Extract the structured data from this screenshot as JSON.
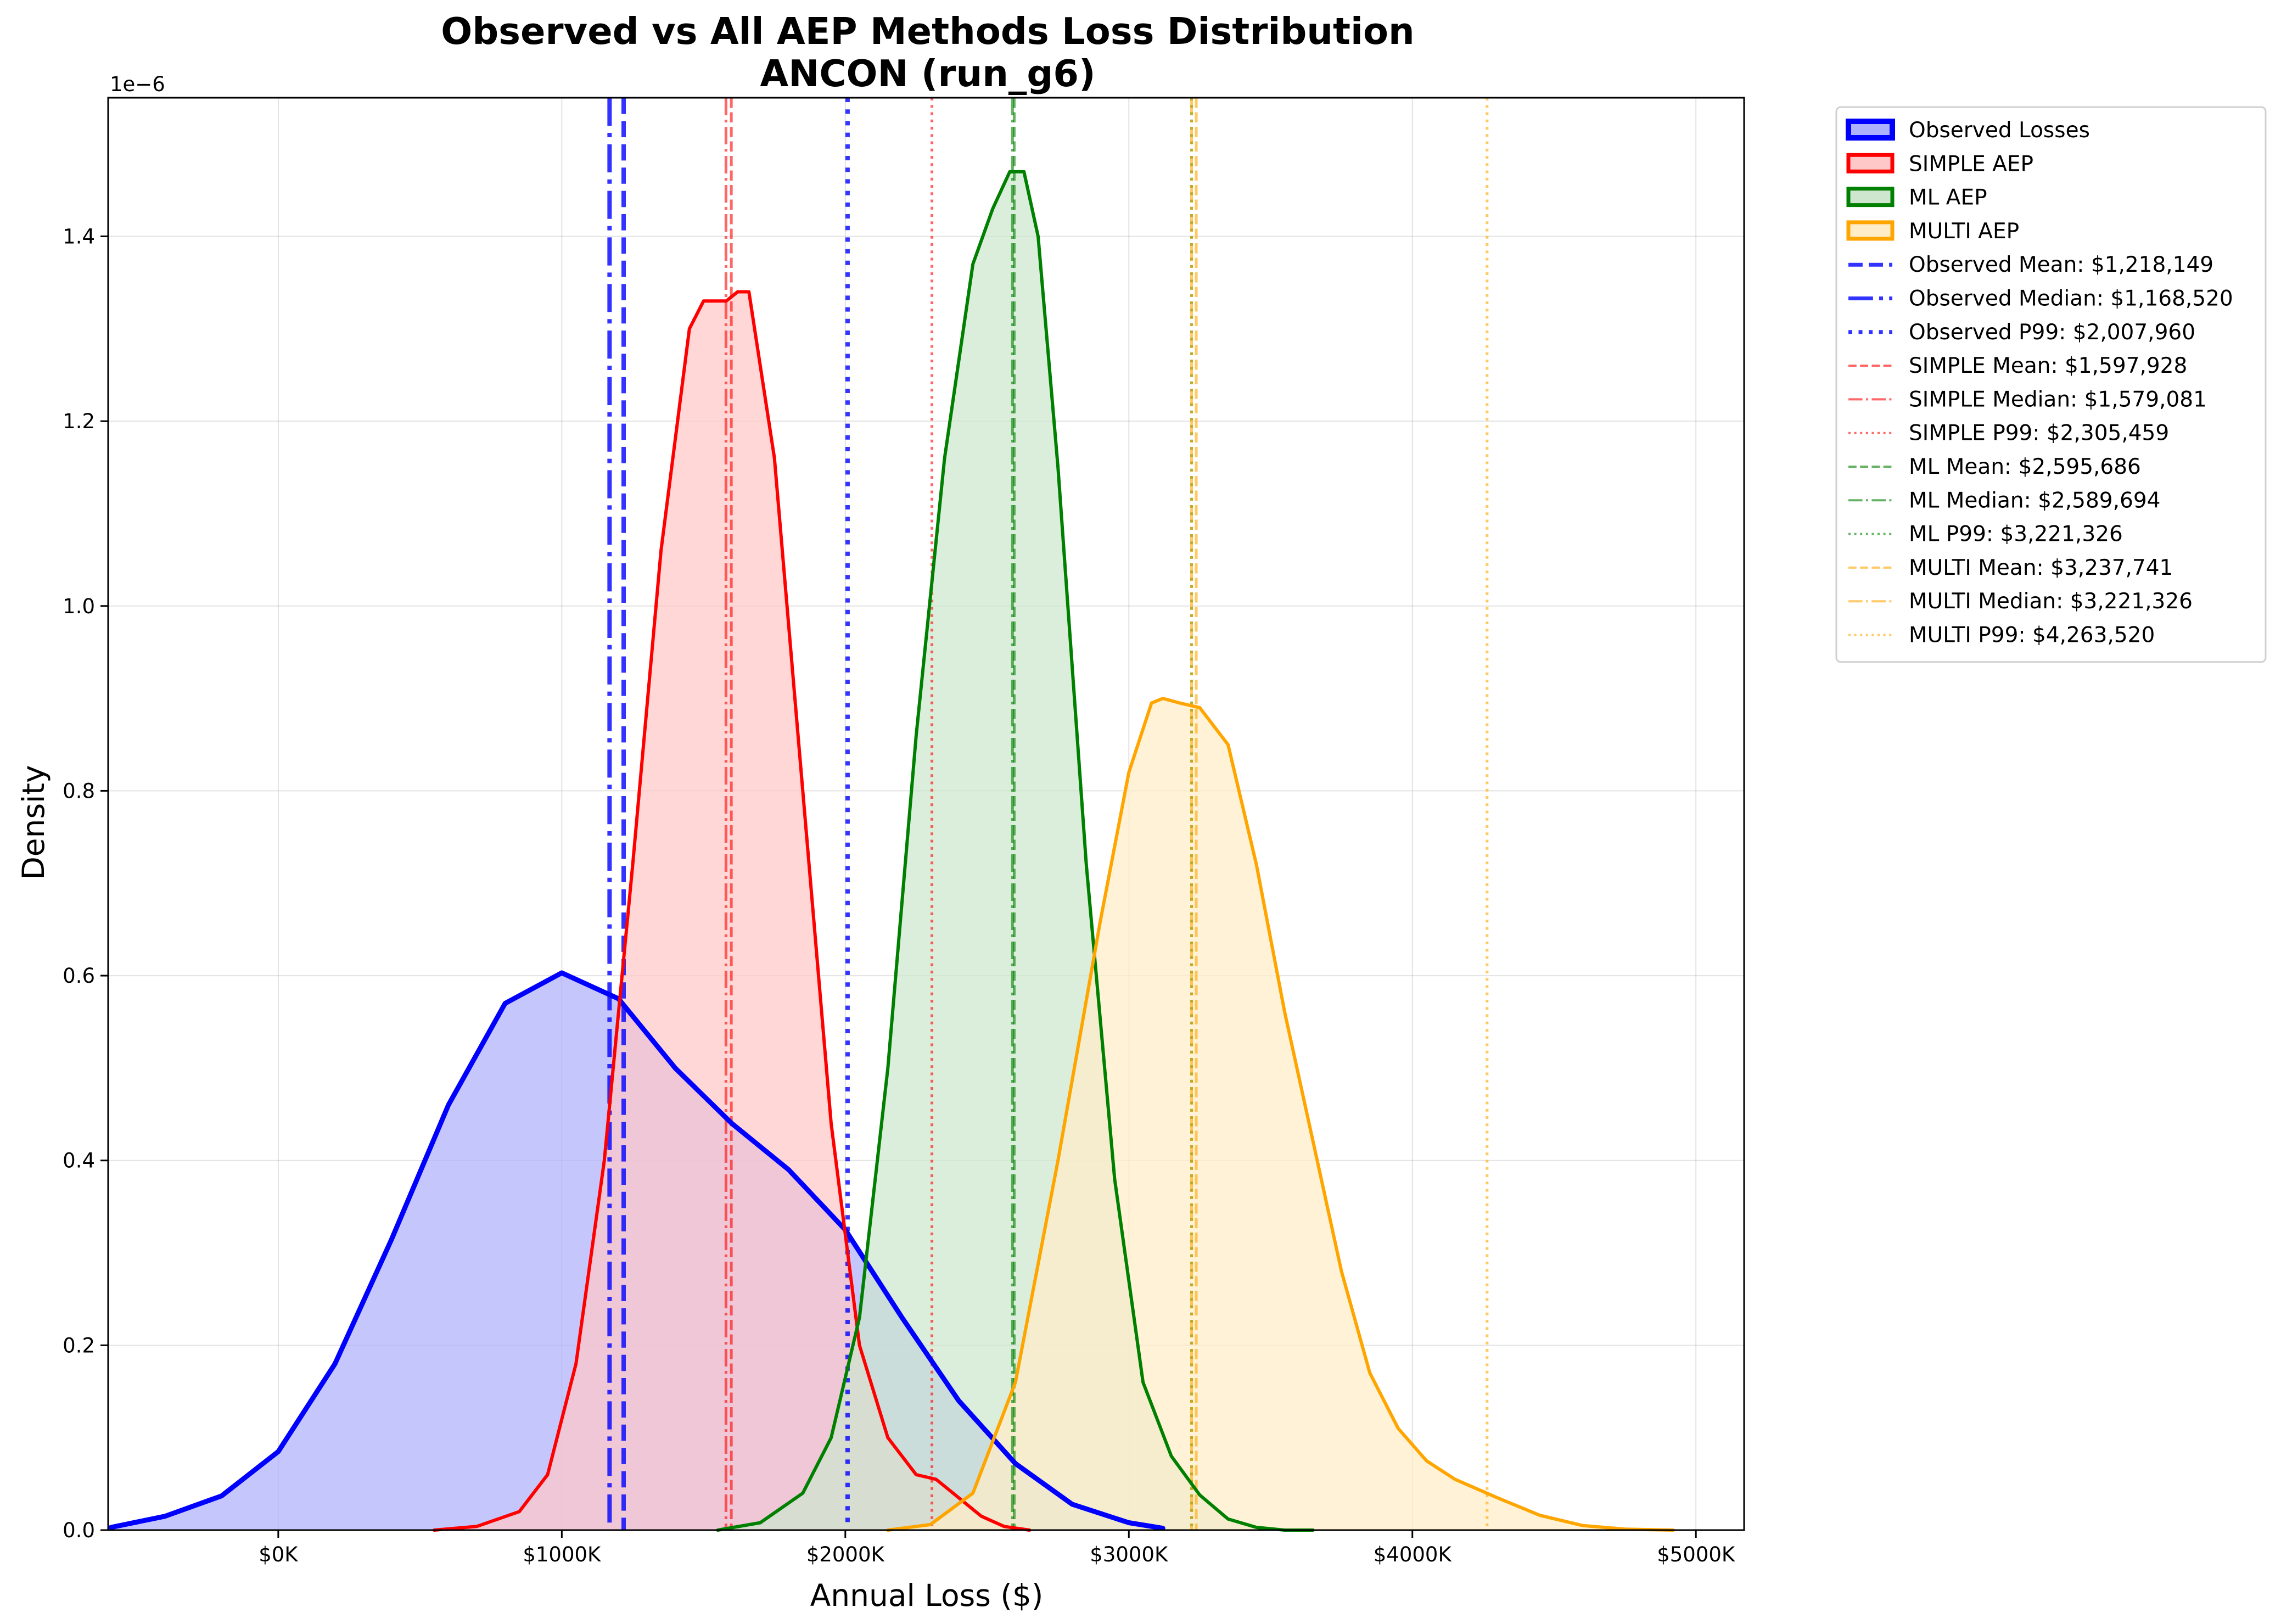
{
  "chart_data": {
    "type": "area",
    "title": "Observed vs All AEP Methods Loss Distribution",
    "subtitle": "ANCON (run_g6)",
    "xlabel": "Annual Loss ($)",
    "ylabel": "Density",
    "y_offset_label": "1e−6",
    "xlim": [
      -600000,
      5170000
    ],
    "ylim": [
      0,
      1.55
    ],
    "x_ticks": [
      {
        "value": 0,
        "label": "$0K"
      },
      {
        "value": 1000000,
        "label": "$1000K"
      },
      {
        "value": 2000000,
        "label": "$2000K"
      },
      {
        "value": 3000000,
        "label": "$3000K"
      },
      {
        "value": 4000000,
        "label": "$4000K"
      },
      {
        "value": 5000000,
        "label": "$5000K"
      }
    ],
    "y_ticks": [
      {
        "value": 0.0,
        "label": "0.0"
      },
      {
        "value": 0.2,
        "label": "0.2"
      },
      {
        "value": 0.4,
        "label": "0.4"
      },
      {
        "value": 0.6,
        "label": "0.6"
      },
      {
        "value": 0.8,
        "label": "0.8"
      },
      {
        "value": 1.0,
        "label": "1.0"
      },
      {
        "value": 1.2,
        "label": "1.2"
      },
      {
        "value": 1.4,
        "label": "1.4"
      }
    ],
    "grid": true,
    "legend_position": "outside-upper-right",
    "series": [
      {
        "name": "Observed Losses",
        "color": "#0000ff",
        "fill_color": "#aeb1fb",
        "line_width": 9,
        "x": [
          -590000,
          -400000,
          -200000,
          0,
          200000,
          400000,
          600000,
          800000,
          1000000,
          1200000,
          1400000,
          1600000,
          1800000,
          2000000,
          2200000,
          2400000,
          2600000,
          2800000,
          3000000,
          3120000
        ],
        "y": [
          0.003,
          0.015,
          0.037,
          0.085,
          0.18,
          0.315,
          0.46,
          0.57,
          0.603,
          0.575,
          0.5,
          0.44,
          0.39,
          0.325,
          0.23,
          0.14,
          0.072,
          0.028,
          0.008,
          0.002
        ]
      },
      {
        "name": "SIMPLE AEP",
        "color": "#ff0000",
        "fill_color": "#ffc8c8",
        "line_width": 6,
        "x": [
          550000,
          700000,
          850000,
          950000,
          1050000,
          1150000,
          1250000,
          1350000,
          1450000,
          1500000,
          1580000,
          1620000,
          1660000,
          1750000,
          1850000,
          1950000,
          2050000,
          2150000,
          2250000,
          2320000,
          2400000,
          2480000,
          2560000,
          2650000
        ],
        "y": [
          0.0,
          0.004,
          0.02,
          0.06,
          0.18,
          0.4,
          0.72,
          1.06,
          1.3,
          1.33,
          1.33,
          1.34,
          1.34,
          1.16,
          0.8,
          0.44,
          0.2,
          0.1,
          0.06,
          0.055,
          0.035,
          0.015,
          0.004,
          0.0
        ]
      },
      {
        "name": "ML AEP",
        "color": "#008000",
        "fill_color": "#cde6cd",
        "line_width": 6,
        "x": [
          1550000,
          1700000,
          1850000,
          1950000,
          2050000,
          2150000,
          2250000,
          2350000,
          2450000,
          2520000,
          2580000,
          2630000,
          2680000,
          2750000,
          2850000,
          2950000,
          3050000,
          3150000,
          3250000,
          3350000,
          3450000,
          3550000,
          3650000
        ],
        "y": [
          0.0,
          0.008,
          0.04,
          0.1,
          0.23,
          0.5,
          0.86,
          1.16,
          1.37,
          1.43,
          1.47,
          1.47,
          1.4,
          1.15,
          0.72,
          0.38,
          0.16,
          0.08,
          0.038,
          0.012,
          0.003,
          0.0,
          0.0
        ]
      },
      {
        "name": "MULTI AEP",
        "color": "#ffa500",
        "fill_color": "#ffedc8",
        "line_width": 6,
        "x": [
          2150000,
          2300000,
          2450000,
          2600000,
          2750000,
          2900000,
          3000000,
          3080000,
          3120000,
          3180000,
          3250000,
          3350000,
          3450000,
          3550000,
          3650000,
          3750000,
          3850000,
          3950000,
          4050000,
          4150000,
          4300000,
          4450000,
          4600000,
          4750000,
          4920000
        ],
        "y": [
          0.0,
          0.006,
          0.04,
          0.16,
          0.4,
          0.66,
          0.82,
          0.895,
          0.9,
          0.895,
          0.89,
          0.85,
          0.72,
          0.56,
          0.42,
          0.28,
          0.17,
          0.11,
          0.075,
          0.055,
          0.035,
          0.016,
          0.005,
          0.001,
          0.0
        ]
      }
    ],
    "reference_lines": [
      {
        "label": "Observed Mean: $1,218,149",
        "value": 1218149,
        "color": "#0000ff",
        "style": "dashed",
        "alpha": 0.8,
        "width": 8
      },
      {
        "label": "Observed Median: $1,168,520",
        "value": 1168520,
        "color": "#0000ff",
        "style": "dashdot",
        "alpha": 0.8,
        "width": 8
      },
      {
        "label": "Observed P99: $2,007,960",
        "value": 2007960,
        "color": "#0000ff",
        "style": "dotted",
        "alpha": 0.8,
        "width": 8
      },
      {
        "label": "SIMPLE Mean: $1,597,928",
        "value": 1597928,
        "color": "#ff0000",
        "style": "dashed",
        "alpha": 0.6,
        "width": 5
      },
      {
        "label": "SIMPLE Median: $1,579,081",
        "value": 1579081,
        "color": "#ff0000",
        "style": "dashdot",
        "alpha": 0.6,
        "width": 5
      },
      {
        "label": "SIMPLE P99: $2,305,459",
        "value": 2305459,
        "color": "#ff0000",
        "style": "dotted",
        "alpha": 0.6,
        "width": 5
      },
      {
        "label": "ML Mean: $2,595,686",
        "value": 2595686,
        "color": "#008000",
        "style": "dashed",
        "alpha": 0.6,
        "width": 5
      },
      {
        "label": "ML Median: $2,589,694",
        "value": 2589694,
        "color": "#008000",
        "style": "dashdot",
        "alpha": 0.6,
        "width": 5
      },
      {
        "label": "ML P99: $3,221,326",
        "value": 3221326,
        "color": "#008000",
        "style": "dotted",
        "alpha": 0.6,
        "width": 5
      },
      {
        "label": "MULTI Mean: $3,237,741",
        "value": 3237741,
        "color": "#ffa500",
        "style": "dashed",
        "alpha": 0.6,
        "width": 5
      },
      {
        "label": "MULTI Median: $3,221,326",
        "value": 3221326,
        "color": "#ffa500",
        "style": "dashdot",
        "alpha": 0.6,
        "width": 5
      },
      {
        "label": "MULTI P99: $4,263,520",
        "value": 4263520,
        "color": "#ffa500",
        "style": "dotted",
        "alpha": 0.6,
        "width": 5
      }
    ]
  }
}
